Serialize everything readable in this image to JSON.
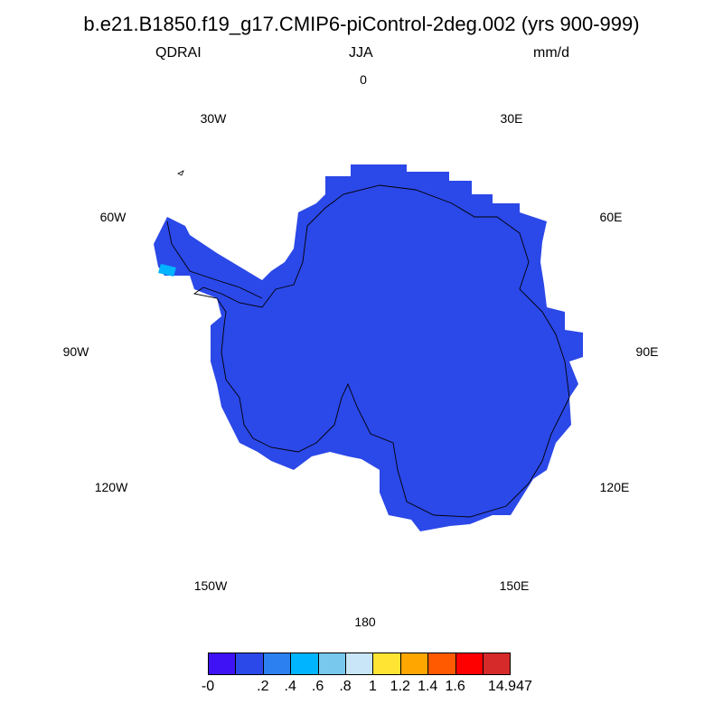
{
  "title": "b.e21.B1850.f19_g17.CMIP6-piControl-2deg.002 (yrs 900-999)",
  "variable": "QDRAI",
  "season": "JJA",
  "units": "mm/d",
  "longitude_labels": {
    "lon0": "0",
    "lon30e": "30E",
    "lon60e": "60E",
    "lon90e": "90E",
    "lon120e": "120E",
    "lon150e": "150E",
    "lon180": "180",
    "lon150w": "150W",
    "lon120w": "120W",
    "lon90w": "90W",
    "lon60w": "60W",
    "lon30w": "30W"
  },
  "colors": {
    "field": "#2b48e8",
    "highlight": "#00b4ff",
    "coast": "#000000"
  },
  "colorbar": {
    "colors": [
      "#3f12f5",
      "#2b48e8",
      "#2d80f0",
      "#00b4ff",
      "#78c8ee",
      "#c8e6f8",
      "#ffe433",
      "#ffa600",
      "#ff5a00",
      "#ff0000",
      "#d62a2a"
    ],
    "labels": [
      "-0",
      ".2",
      ".4",
      ".6",
      ".8",
      "1",
      "1.2",
      "1.4",
      "1.6",
      "14.947"
    ]
  }
}
